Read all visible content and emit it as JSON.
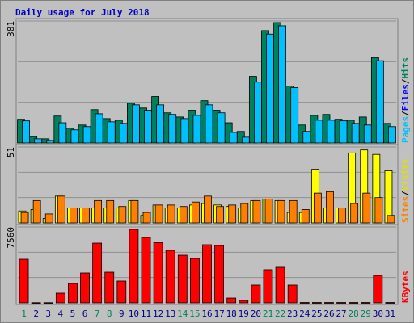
{
  "title": "Daily usage for July 2018",
  "legend_separator": "/",
  "weekend": [
    0,
    6,
    7,
    13,
    14,
    20,
    21,
    27,
    28
  ],
  "weekend_color": "#00805c",
  "weekday_color": "#000080",
  "chart_data": [
    {
      "type": "bar",
      "series": [
        {
          "name": "Pages",
          "color": "#00c0ff",
          "values": [
            69,
            13,
            8,
            63,
            41,
            51,
            91,
            66,
            61,
            119,
            102,
            119,
            89,
            76,
            86,
            119,
            94,
            33,
            18,
            190,
            340,
            366,
            173,
            36,
            71,
            71,
            69,
            61,
            56,
            257,
            51
          ]
        },
        {
          "name": "Files",
          "color": "#0000ff",
          "values": [
            null,
            null,
            null,
            null,
            null,
            null,
            null,
            null,
            null,
            null,
            null,
            null,
            null,
            null,
            null,
            null,
            null,
            null,
            null,
            null,
            null,
            null,
            null,
            null,
            null,
            null,
            null,
            null,
            null,
            null,
            null
          ]
        },
        {
          "name": "Hits",
          "color": "#00805c",
          "values": [
            74,
            20,
            13,
            84,
            46,
            56,
            104,
            76,
            71,
            124,
            109,
            145,
            94,
            81,
            102,
            132,
            102,
            63,
            36,
            208,
            351,
            376,
            178,
            56,
            86,
            89,
            74,
            71,
            81,
            267,
            61
          ]
        }
      ],
      "ylim": [
        0,
        381
      ],
      "yticks": [
        381
      ]
    },
    {
      "type": "bar",
      "series": [
        {
          "name": "Sites",
          "color": "#ff8000",
          "values": [
            7,
            15,
            6,
            18,
            10,
            10,
            15,
            15,
            11,
            15,
            7,
            12,
            12,
            11,
            14,
            18,
            11,
            12,
            13,
            15,
            16,
            15,
            15,
            9,
            20,
            21,
            10,
            13,
            20,
            17,
            5
          ]
        },
        {
          "name": "Visits",
          "color": "#ffff00",
          "values": [
            8,
            9,
            3,
            18,
            10,
            10,
            10,
            10,
            10,
            15,
            5,
            12,
            10,
            10,
            12,
            13,
            12,
            11,
            10,
            15,
            16,
            15,
            7,
            7,
            36,
            10,
            10,
            47,
            49,
            46,
            35
          ]
        }
      ],
      "ylim": [
        0,
        51
      ],
      "yticks": [
        51
      ]
    },
    {
      "type": "bar",
      "categories": [
        "1",
        "2",
        "3",
        "4",
        "5",
        "6",
        "7",
        "8",
        "9",
        "10",
        "11",
        "12",
        "13",
        "14",
        "15",
        "16",
        "17",
        "18",
        "19",
        "20",
        "21",
        "22",
        "23",
        "24",
        "25",
        "26",
        "27",
        "28",
        "29",
        "30",
        "31"
      ],
      "series": [
        {
          "name": "KBytes",
          "color": "#ff0000",
          "values": [
            4343,
            20,
            20,
            965,
            1930,
            2976,
            5950,
            3056,
            2172,
            7320,
            6514,
            6000,
            5227,
            4745,
            4423,
            5790,
            5710,
            480,
            240,
            1770,
            3300,
            3540,
            1770,
            40,
            40,
            40,
            40,
            40,
            40,
            2730,
            40
          ]
        }
      ],
      "ylim": [
        0,
        7560
      ],
      "yticks": [
        7560
      ]
    }
  ]
}
